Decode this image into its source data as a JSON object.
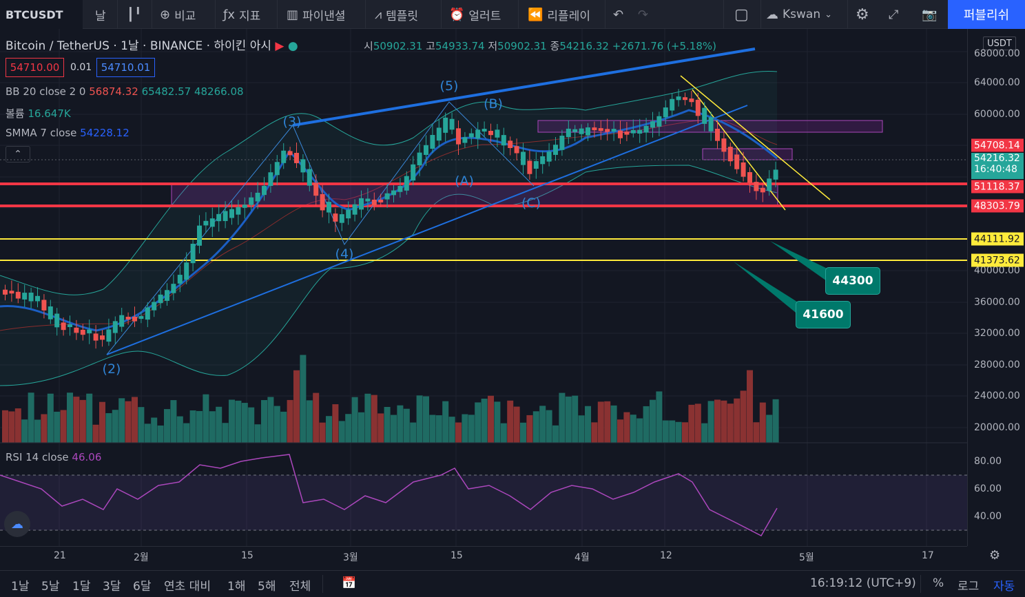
{
  "toolbar": {
    "symbol": "BTCUSDT",
    "interval": "날",
    "compare": "비교",
    "indicators": "지표",
    "financials": "파이낸셜",
    "templates": "템플릿",
    "alerts": "얼러트",
    "replay": "리플레이",
    "layout_name": "Kswan",
    "publish": "퍼블리쉬"
  },
  "legend": {
    "title": "Bitcoin / TetherUS",
    "interval": "1날",
    "exchange": "BINANCE",
    "extra": "하이킨 아시",
    "open_label": "시",
    "open": "50902.31",
    "high_label": "고",
    "high": "54933.74",
    "low_label": "저",
    "low": "50902.31",
    "close_label": "종",
    "close": "54216.32",
    "change": "+2671.76 (+5.18%)",
    "sell_price": "54710.00",
    "spread": "0.01",
    "buy_price": "54710.01",
    "bb_label": "BB 20 close 2 0",
    "bb_mid": "56874.32",
    "bb_up": "65482.57",
    "bb_low": "48266.08",
    "vol_label": "볼륨",
    "vol_value": "16.647K",
    "smma_label": "SMMA 7 close",
    "smma_value": "54228.12",
    "rsi_label": "RSI 14 close",
    "rsi_value": "46.06"
  },
  "axis": {
    "currency": "USDT",
    "ticks": [
      "68000.00",
      "64000.00",
      "60000.00",
      "40000.00",
      "36000.00",
      "32000.00",
      "28000.00",
      "24000.00",
      "20000.00"
    ],
    "rsi_ticks": [
      "80.00",
      "60.00",
      "40.00"
    ],
    "tags": {
      "t1": "54708.14",
      "t2": "54216.32",
      "t2_sub": "16:40:48",
      "t3": "51118.37",
      "t4": "48303.79",
      "t5": "44111.92",
      "t6": "41373.62"
    }
  },
  "waves": {
    "w2": "(2)",
    "w3": "(3)",
    "w4": "(4)",
    "w5": "(5)",
    "wA": "(A)",
    "wB": "(B)",
    "wC": "(C)"
  },
  "callouts": {
    "c1": "44300",
    "c2": "41600"
  },
  "timeline": [
    "21",
    "2월",
    "15",
    "3월",
    "15",
    "4월",
    "12",
    "5월",
    "17"
  ],
  "ranges": [
    "1날",
    "5날",
    "1달",
    "3달",
    "6달",
    "연초 대비",
    "1해",
    "5해",
    "전체"
  ],
  "status": {
    "clock": "16:19:12 (UTC+9)",
    "percent": "%",
    "log": "로그",
    "auto": "자동"
  },
  "colors": {
    "up": "#26a69a",
    "down": "#ef5350",
    "bg": "#131722",
    "accent": "#2962ff"
  }
}
